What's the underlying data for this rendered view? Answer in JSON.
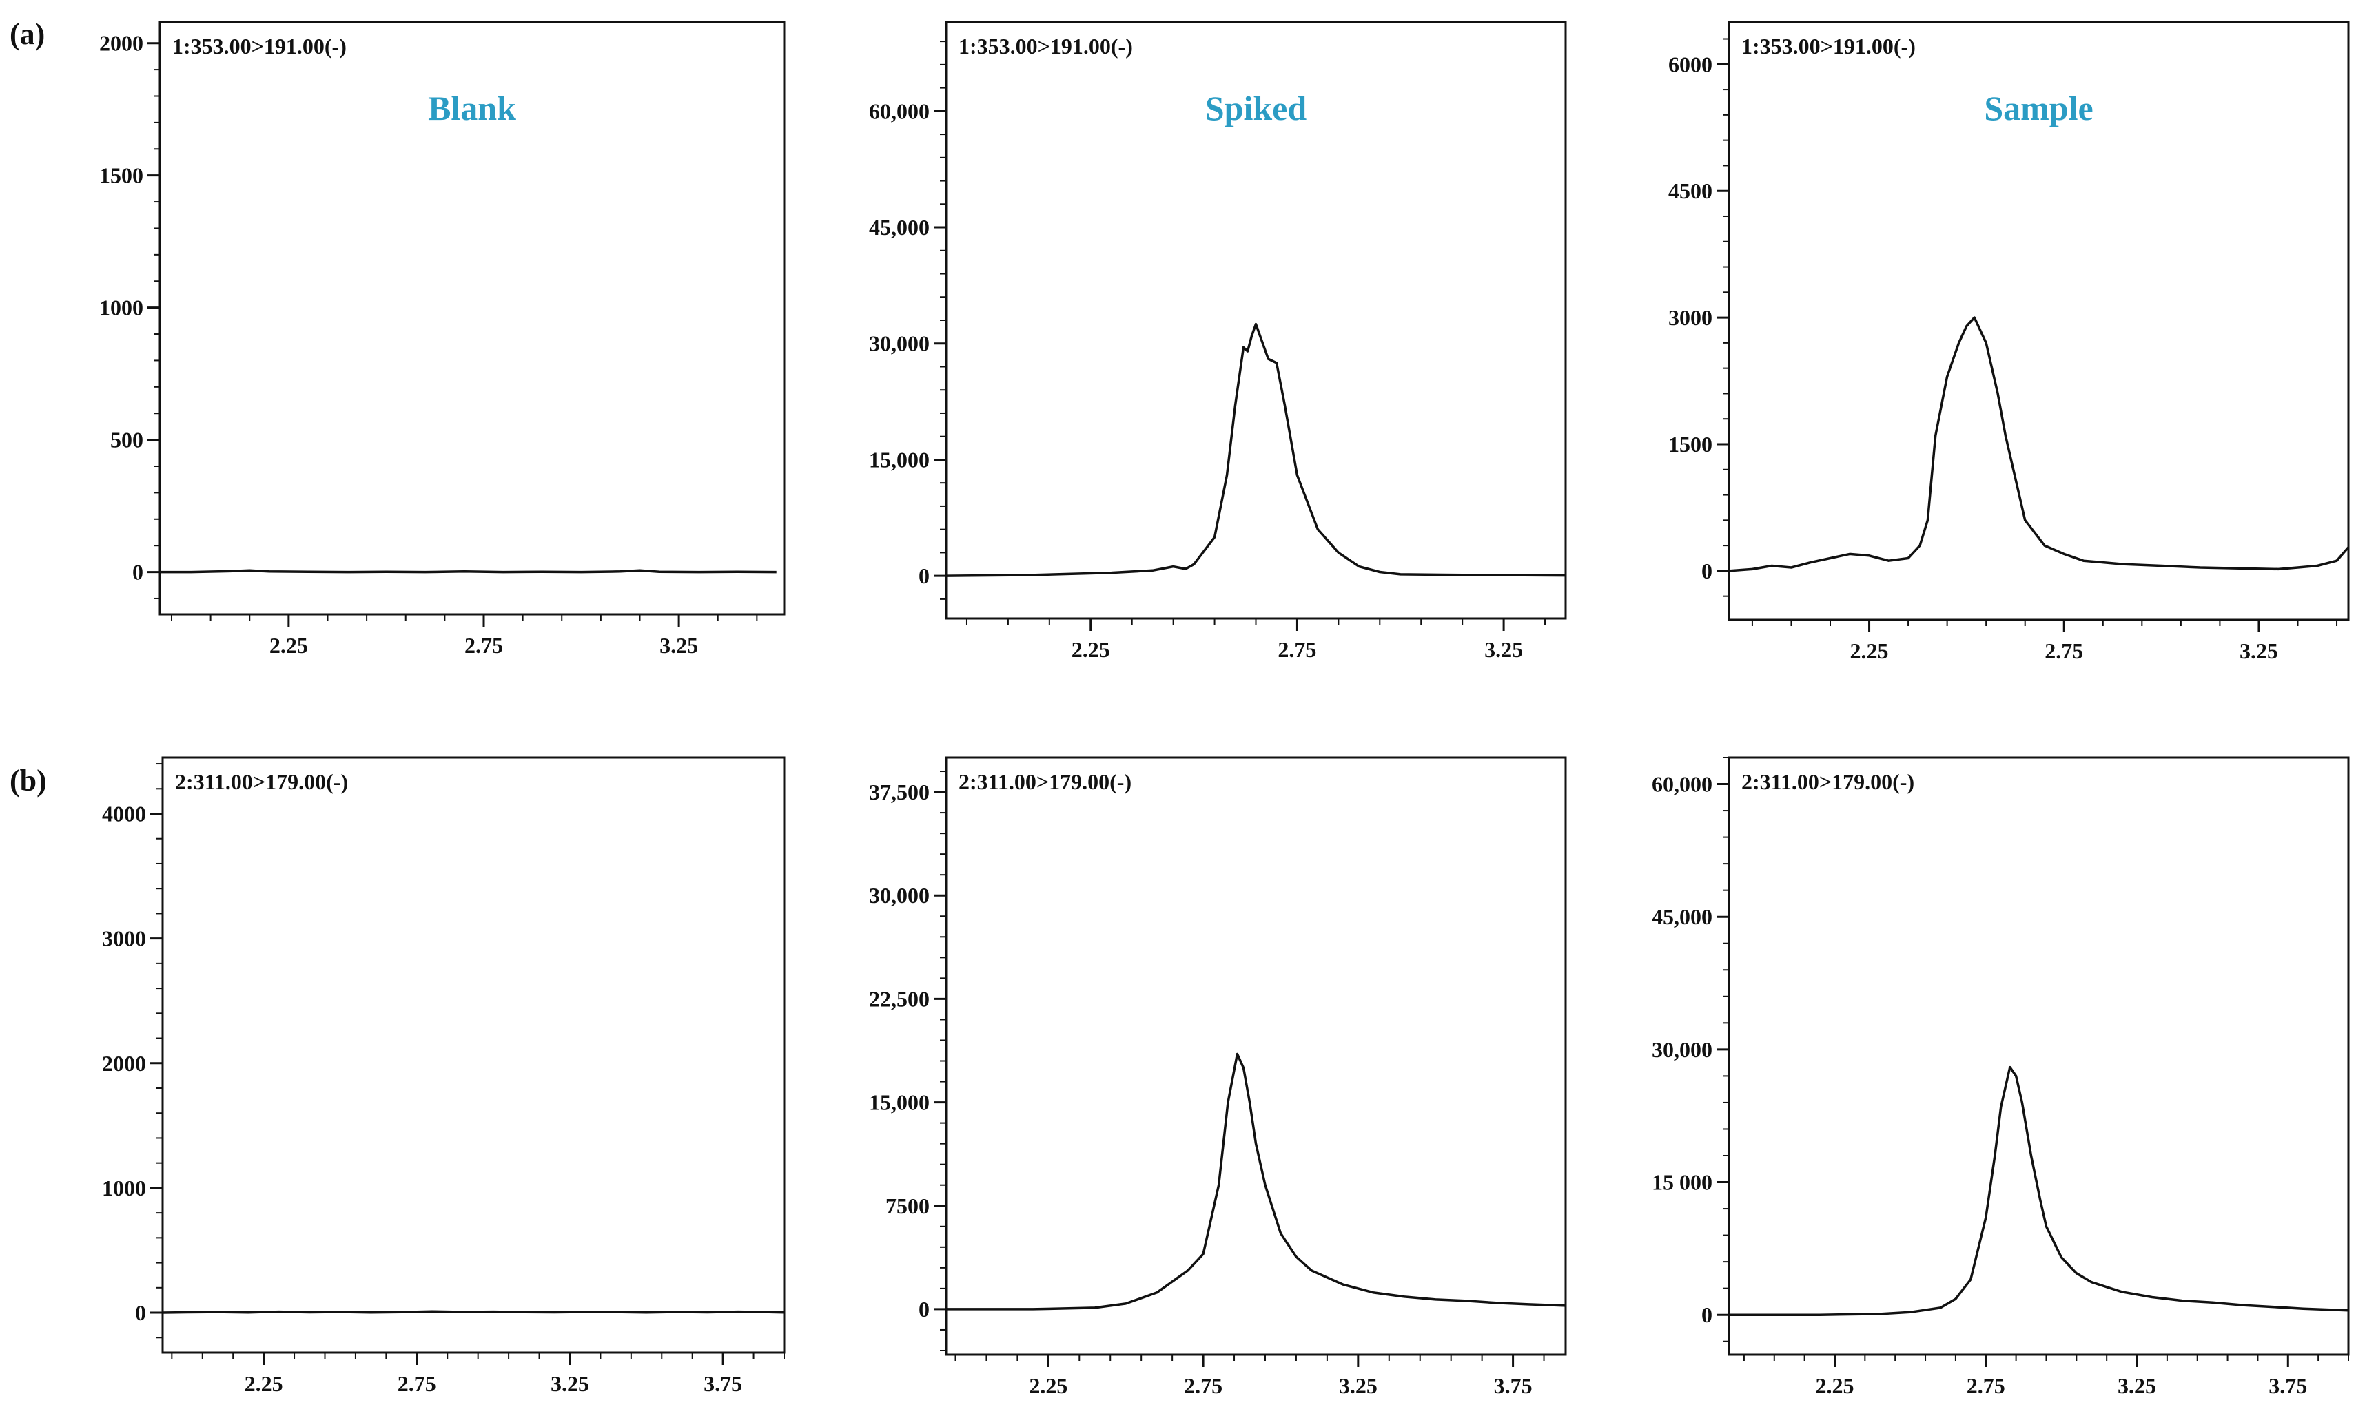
{
  "figure": {
    "row_labels": [
      "(a)",
      "(b)"
    ]
  },
  "chart_data": [
    {
      "type": "line",
      "row": "(a)",
      "title": "Blank",
      "trace_label": "1:353.00>191.00(-)",
      "xlabel": "",
      "ylabel": "",
      "xlim": [
        1.92,
        3.52
      ],
      "ylim": [
        -160,
        2080
      ],
      "xticks": [
        2.25,
        2.75,
        3.25
      ],
      "xtick_labels": [
        "2.25",
        "2.75",
        "3.25"
      ],
      "yticks": [
        0,
        500,
        1000,
        1500,
        2000
      ],
      "ytick_labels": [
        "0",
        "500",
        "1000",
        "1500",
        "2000"
      ],
      "series": [
        {
          "name": "1:353.00>191.00(-)",
          "x": [
            1.92,
            2.0,
            2.1,
            2.15,
            2.2,
            2.3,
            2.4,
            2.5,
            2.6,
            2.7,
            2.8,
            2.9,
            3.0,
            3.1,
            3.15,
            3.2,
            3.3,
            3.4,
            3.5
          ],
          "y": [
            0,
            0,
            3,
            6,
            2,
            1,
            0,
            1,
            0,
            2,
            0,
            1,
            0,
            2,
            6,
            1,
            0,
            1,
            0
          ]
        }
      ]
    },
    {
      "type": "line",
      "row": "(a)",
      "title": "Spiked",
      "trace_label": "1:353.00>191.00(-)",
      "xlabel": "",
      "ylabel": "",
      "xlim": [
        1.9,
        3.4
      ],
      "ylim": [
        -5500,
        71500
      ],
      "xticks": [
        2.25,
        2.75,
        3.25
      ],
      "xtick_labels": [
        "2.25",
        "2.75",
        "3.25"
      ],
      "yticks": [
        0,
        15000,
        30000,
        45000,
        60000
      ],
      "ytick_labels": [
        "0",
        "15,000",
        "30,000",
        "45,000",
        "60,000"
      ],
      "series": [
        {
          "name": "1:353.00>191.00(-)",
          "x": [
            1.9,
            2.1,
            2.3,
            2.4,
            2.45,
            2.48,
            2.5,
            2.55,
            2.58,
            2.6,
            2.62,
            2.63,
            2.64,
            2.65,
            2.66,
            2.68,
            2.7,
            2.72,
            2.75,
            2.8,
            2.85,
            2.9,
            2.95,
            3.0,
            3.1,
            3.2,
            3.3,
            3.4
          ],
          "y": [
            0,
            100,
            400,
            700,
            1200,
            900,
            1500,
            5000,
            13000,
            22000,
            29500,
            29000,
            31000,
            32500,
            31000,
            28000,
            27500,
            22000,
            13000,
            6000,
            3000,
            1200,
            500,
            200,
            150,
            100,
            80,
            50
          ]
        }
      ]
    },
    {
      "type": "line",
      "row": "(a)",
      "title": "Sample",
      "trace_label": "1:353.00>191.00(-)",
      "xlabel": "",
      "ylabel": "",
      "xlim": [
        1.89,
        3.48
      ],
      "ylim": [
        -580,
        6500
      ],
      "xticks": [
        2.25,
        2.75,
        3.25
      ],
      "xtick_labels": [
        "2.25",
        "2.75",
        "3.25"
      ],
      "yticks": [
        0,
        1500,
        3000,
        4500,
        6000
      ],
      "ytick_labels": [
        "0",
        "1500",
        "3000",
        "4500",
        "6000"
      ],
      "series": [
        {
          "name": "1:353.00>191.00(-)",
          "x": [
            1.89,
            1.95,
            2.0,
            2.05,
            2.1,
            2.15,
            2.2,
            2.25,
            2.3,
            2.35,
            2.38,
            2.4,
            2.42,
            2.45,
            2.48,
            2.5,
            2.52,
            2.55,
            2.58,
            2.6,
            2.65,
            2.7,
            2.75,
            2.8,
            2.85,
            2.9,
            3.0,
            3.1,
            3.2,
            3.3,
            3.35,
            3.4,
            3.45,
            3.48
          ],
          "y": [
            0,
            20,
            60,
            40,
            100,
            150,
            200,
            180,
            120,
            150,
            300,
            600,
            1600,
            2300,
            2700,
            2900,
            3000,
            2700,
            2100,
            1600,
            600,
            300,
            200,
            120,
            100,
            80,
            60,
            40,
            30,
            20,
            40,
            60,
            120,
            280
          ]
        }
      ]
    },
    {
      "type": "line",
      "row": "(b)",
      "title": "Blank",
      "trace_label": "2:311.00>179.00(-)",
      "xlabel": "",
      "ylabel": "",
      "xlim": [
        1.92,
        3.95
      ],
      "ylim": [
        -320,
        4450
      ],
      "xticks": [
        2.25,
        2.75,
        3.25,
        3.75
      ],
      "xtick_labels": [
        "2.25",
        "2.75",
        "3.25",
        "3.75"
      ],
      "yticks": [
        0,
        1000,
        2000,
        3000,
        4000
      ],
      "ytick_labels": [
        "0",
        "1000",
        "2000",
        "3000",
        "4000"
      ],
      "series": [
        {
          "name": "2:311.00>179.00(-)",
          "x": [
            1.92,
            2.0,
            2.1,
            2.2,
            2.3,
            2.4,
            2.5,
            2.6,
            2.7,
            2.8,
            2.9,
            3.0,
            3.1,
            3.2,
            3.3,
            3.4,
            3.5,
            3.6,
            3.7,
            3.8,
            3.9,
            3.95
          ],
          "y": [
            0,
            3,
            5,
            2,
            8,
            3,
            6,
            2,
            4,
            10,
            6,
            8,
            4,
            3,
            6,
            5,
            2,
            6,
            3,
            8,
            4,
            2
          ]
        }
      ]
    },
    {
      "type": "line",
      "row": "(b)",
      "title": "Spiked",
      "trace_label": "2:311.00>179.00(-)",
      "xlabel": "",
      "ylabel": "",
      "xlim": [
        1.92,
        3.92
      ],
      "ylim": [
        -3300,
        40000
      ],
      "xticks": [
        2.25,
        2.75,
        3.25,
        3.75
      ],
      "xtick_labels": [
        "2.25",
        "2.75",
        "3.25",
        "3.75"
      ],
      "yticks": [
        0,
        7500,
        15000,
        22500,
        30000,
        37500
      ],
      "ytick_labels": [
        "0",
        "7500",
        "15,000",
        "22,500",
        "30,000",
        "37,500"
      ],
      "series": [
        {
          "name": "2:311.00>179.00(-)",
          "x": [
            1.92,
            2.2,
            2.4,
            2.5,
            2.6,
            2.7,
            2.75,
            2.8,
            2.83,
            2.86,
            2.88,
            2.9,
            2.92,
            2.95,
            3.0,
            3.05,
            3.1,
            3.2,
            3.3,
            3.4,
            3.5,
            3.6,
            3.7,
            3.8,
            3.92
          ],
          "y": [
            0,
            0,
            100,
            400,
            1200,
            2800,
            4000,
            9000,
            15000,
            18500,
            17500,
            15000,
            12000,
            9000,
            5500,
            3800,
            2800,
            1800,
            1200,
            900,
            700,
            600,
            450,
            350,
            250
          ]
        }
      ]
    },
    {
      "type": "line",
      "row": "(b)",
      "title": "Sample",
      "trace_label": "2:311.00>179.00(-)",
      "xlabel": "",
      "ylabel": "",
      "xlim": [
        1.9,
        3.95
      ],
      "ylim": [
        -4500,
        63000
      ],
      "xticks": [
        2.25,
        2.75,
        3.25,
        3.75
      ],
      "xtick_labels": [
        "2.25",
        "2.75",
        "3.25",
        "3.75"
      ],
      "yticks": [
        0,
        15000,
        30000,
        45000,
        60000
      ],
      "ytick_labels": [
        "0",
        "15 000",
        "30,000",
        "45,000",
        "60,000"
      ],
      "series": [
        {
          "name": "2:311.00>179.00(-)",
          "x": [
            1.9,
            2.2,
            2.4,
            2.5,
            2.6,
            2.65,
            2.7,
            2.75,
            2.78,
            2.8,
            2.83,
            2.85,
            2.87,
            2.9,
            2.93,
            2.95,
            3.0,
            3.05,
            3.1,
            3.2,
            3.3,
            3.4,
            3.5,
            3.6,
            3.7,
            3.8,
            3.95
          ],
          "y": [
            0,
            0,
            100,
            300,
            800,
            1800,
            4000,
            11000,
            18000,
            23500,
            28000,
            27000,
            24000,
            18000,
            13000,
            10000,
            6500,
            4700,
            3700,
            2600,
            2000,
            1600,
            1400,
            1100,
            900,
            700,
            500
          ]
        }
      ]
    }
  ]
}
